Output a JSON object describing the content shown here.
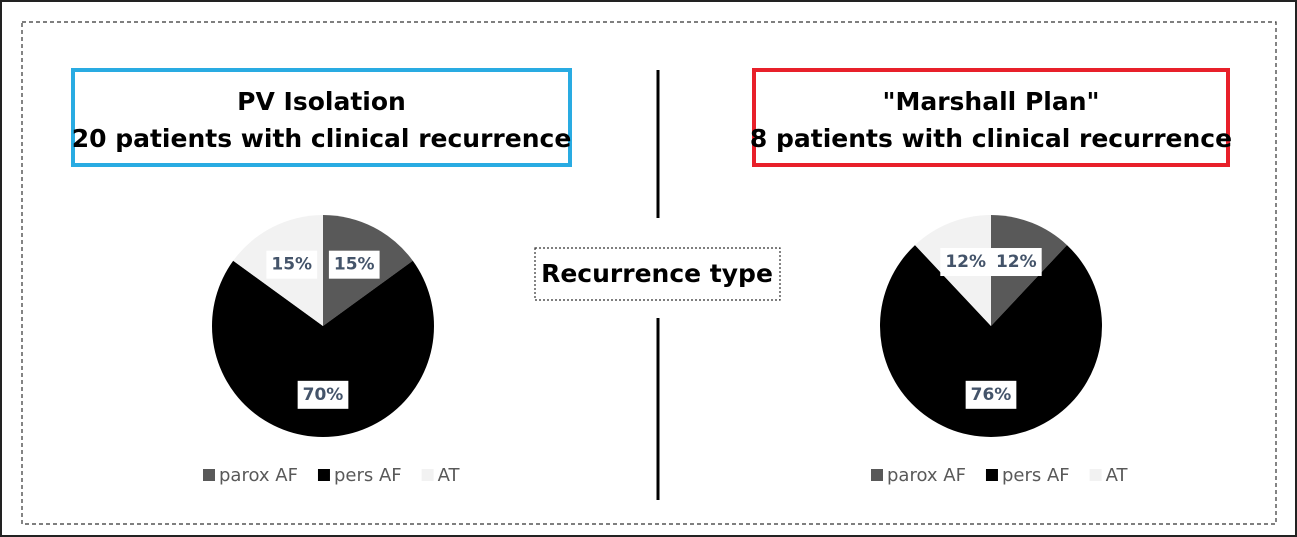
{
  "center_label": "Recurrence type",
  "chart_data": [
    {
      "type": "pie",
      "title": "PV Isolation",
      "subtitle": "20 patients with clinical recurrence",
      "title_box_color": "#29abe2",
      "categories": [
        "parox AF",
        "pers AF",
        "AT"
      ],
      "values": [
        15,
        70,
        15
      ],
      "value_labels": [
        "15%",
        "70%",
        "15%"
      ],
      "colors": [
        "#595959",
        "#000000",
        "#f2f2f2"
      ]
    },
    {
      "type": "pie",
      "title": "\"Marshall Plan\"",
      "subtitle": "8 patients with clinical recurrence",
      "title_box_color": "#e8202a",
      "categories": [
        "parox AF",
        "pers AF",
        "AT"
      ],
      "values": [
        12,
        76,
        12
      ],
      "value_labels": [
        "12%",
        "76%",
        "12%"
      ],
      "colors": [
        "#595959",
        "#000000",
        "#f2f2f2"
      ]
    }
  ]
}
